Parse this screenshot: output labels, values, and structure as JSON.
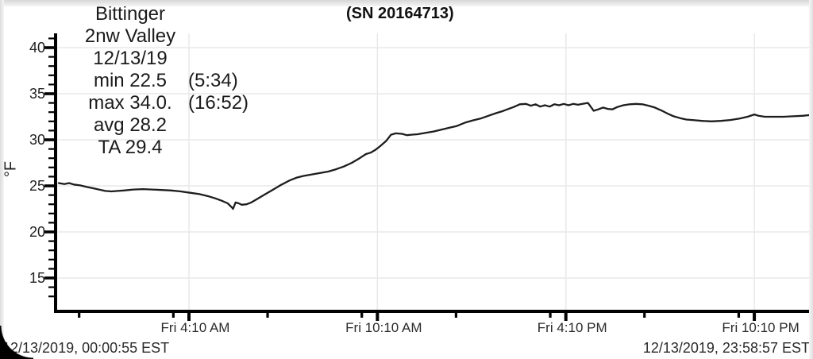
{
  "header": {
    "serial": "(SN 20164713)",
    "lines": [
      {
        "main": "Bittinger",
        "suffix": ""
      },
      {
        "main": "2nw Valley",
        "suffix": ""
      },
      {
        "main": "12/13/19",
        "suffix": ""
      },
      {
        "main": "min 22.5",
        "suffix": "(5:34)"
      },
      {
        "main": "max 34.0.",
        "suffix": "(16:52)"
      },
      {
        "main": "avg 28.2",
        "suffix": ""
      },
      {
        "main": "TA 29.4",
        "suffix": ""
      }
    ]
  },
  "footer": {
    "start_time": "12/13/2019, 00:00:55 EST",
    "end_time": "12/13/2019, 23:58:57 EST"
  },
  "chart_data": {
    "type": "line",
    "title": "(SN 20164713)",
    "station": "Bittinger",
    "location": "2nw Valley",
    "date": "12/13/19",
    "ylabel": "°F",
    "grid": true,
    "stats": {
      "min": 22.5,
      "min_time": "5:34",
      "max": 34.0,
      "max_time": "16:52",
      "avg": 28.2,
      "ta": 29.4
    },
    "x_axis": {
      "unit": "hours_since_midnight",
      "range": [
        0.015,
        23.983
      ],
      "start_label": "12/13/2019, 00:00:55 EST",
      "end_label": "12/13/2019, 23:58:57 EST",
      "major_ticks": [
        {
          "t": 4.1667,
          "label": "Fri 4:10 AM"
        },
        {
          "t": 10.1667,
          "label": "Fri 10:10 AM"
        },
        {
          "t": 16.1667,
          "label": "Fri 4:10 PM"
        },
        {
          "t": 22.1667,
          "label": "Fri 10:10 PM"
        }
      ],
      "minor_tick_times": [
        0.67,
        3.67,
        6.67,
        9.67,
        12.67,
        15.67,
        18.67,
        21.67
      ]
    },
    "y_axis": {
      "range": [
        11.7,
        41.4
      ],
      "major_ticks": [
        40,
        35,
        30,
        25,
        20,
        15
      ],
      "minor_step": 1
    },
    "colors": {
      "line": "#1d1d1d",
      "grid": "#e9e9e9",
      "axis": "#000000"
    },
    "series": [
      {
        "name": "temperature_f",
        "points": [
          [
            0.02,
            25.3
          ],
          [
            0.2,
            25.2
          ],
          [
            0.35,
            25.3
          ],
          [
            0.5,
            25.15
          ],
          [
            0.7,
            25.05
          ],
          [
            0.9,
            24.9
          ],
          [
            1.1,
            24.75
          ],
          [
            1.3,
            24.6
          ],
          [
            1.5,
            24.45
          ],
          [
            1.7,
            24.4
          ],
          [
            1.9,
            24.45
          ],
          [
            2.1,
            24.5
          ],
          [
            2.4,
            24.6
          ],
          [
            2.7,
            24.65
          ],
          [
            3.0,
            24.6
          ],
          [
            3.3,
            24.55
          ],
          [
            3.6,
            24.5
          ],
          [
            3.9,
            24.4
          ],
          [
            4.2,
            24.25
          ],
          [
            4.5,
            24.1
          ],
          [
            4.8,
            23.85
          ],
          [
            5.0,
            23.65
          ],
          [
            5.2,
            23.4
          ],
          [
            5.4,
            23.1
          ],
          [
            5.55,
            22.6
          ],
          [
            5.57,
            22.5
          ],
          [
            5.65,
            23.2
          ],
          [
            5.75,
            23.1
          ],
          [
            5.85,
            22.95
          ],
          [
            6.0,
            23.0
          ],
          [
            6.15,
            23.2
          ],
          [
            6.35,
            23.6
          ],
          [
            6.6,
            24.1
          ],
          [
            6.85,
            24.6
          ],
          [
            7.1,
            25.1
          ],
          [
            7.35,
            25.55
          ],
          [
            7.6,
            25.9
          ],
          [
            7.85,
            26.1
          ],
          [
            8.1,
            26.25
          ],
          [
            8.35,
            26.4
          ],
          [
            8.6,
            26.55
          ],
          [
            8.85,
            26.8
          ],
          [
            9.1,
            27.1
          ],
          [
            9.35,
            27.5
          ],
          [
            9.6,
            28.0
          ],
          [
            9.8,
            28.45
          ],
          [
            9.95,
            28.6
          ],
          [
            10.1,
            28.9
          ],
          [
            10.25,
            29.3
          ],
          [
            10.45,
            29.9
          ],
          [
            10.6,
            30.55
          ],
          [
            10.75,
            30.7
          ],
          [
            10.95,
            30.65
          ],
          [
            11.1,
            30.5
          ],
          [
            11.25,
            30.55
          ],
          [
            11.45,
            30.6
          ],
          [
            11.7,
            30.75
          ],
          [
            11.95,
            30.9
          ],
          [
            12.2,
            31.1
          ],
          [
            12.45,
            31.3
          ],
          [
            12.7,
            31.5
          ],
          [
            12.95,
            31.85
          ],
          [
            13.2,
            32.1
          ],
          [
            13.45,
            32.3
          ],
          [
            13.7,
            32.6
          ],
          [
            13.95,
            32.9
          ],
          [
            14.15,
            33.1
          ],
          [
            14.3,
            33.3
          ],
          [
            14.5,
            33.55
          ],
          [
            14.7,
            33.85
          ],
          [
            14.9,
            33.9
          ],
          [
            15.05,
            33.7
          ],
          [
            15.2,
            33.85
          ],
          [
            15.35,
            33.6
          ],
          [
            15.5,
            33.75
          ],
          [
            15.65,
            33.6
          ],
          [
            15.8,
            33.85
          ],
          [
            15.95,
            33.75
          ],
          [
            16.1,
            33.9
          ],
          [
            16.25,
            33.75
          ],
          [
            16.4,
            33.9
          ],
          [
            16.55,
            33.8
          ],
          [
            16.7,
            33.9
          ],
          [
            16.87,
            34.0
          ],
          [
            17.0,
            33.4
          ],
          [
            17.05,
            33.15
          ],
          [
            17.2,
            33.3
          ],
          [
            17.35,
            33.5
          ],
          [
            17.5,
            33.35
          ],
          [
            17.65,
            33.3
          ],
          [
            17.8,
            33.55
          ],
          [
            18.0,
            33.75
          ],
          [
            18.2,
            33.85
          ],
          [
            18.4,
            33.9
          ],
          [
            18.6,
            33.85
          ],
          [
            18.8,
            33.7
          ],
          [
            19.0,
            33.5
          ],
          [
            19.2,
            33.2
          ],
          [
            19.4,
            32.85
          ],
          [
            19.6,
            32.55
          ],
          [
            19.8,
            32.35
          ],
          [
            20.0,
            32.2
          ],
          [
            20.2,
            32.15
          ],
          [
            20.5,
            32.05
          ],
          [
            20.8,
            32.0
          ],
          [
            21.1,
            32.05
          ],
          [
            21.4,
            32.15
          ],
          [
            21.7,
            32.3
          ],
          [
            21.95,
            32.5
          ],
          [
            22.17,
            32.75
          ],
          [
            22.3,
            32.6
          ],
          [
            22.5,
            32.5
          ],
          [
            22.8,
            32.5
          ],
          [
            23.1,
            32.5
          ],
          [
            23.4,
            32.55
          ],
          [
            23.7,
            32.6
          ],
          [
            23.98,
            32.7
          ]
        ]
      }
    ]
  }
}
